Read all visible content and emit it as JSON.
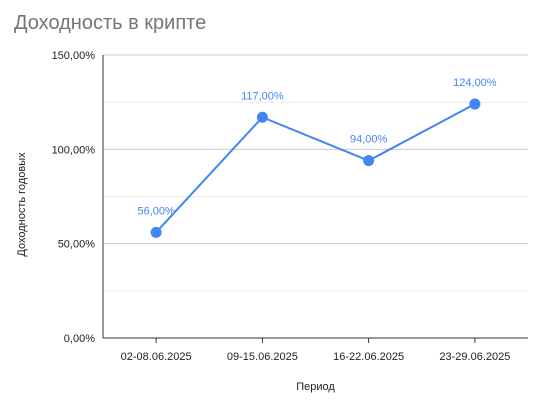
{
  "chart_data": {
    "type": "line",
    "title": "Доходность в крипте",
    "xlabel": "Период",
    "ylabel": "Доходность годовых",
    "categories": [
      "02-08.06.2025",
      "09-15.06.2025",
      "16-22.06.2025",
      "23-29.06.2025"
    ],
    "series": [
      {
        "values": [
          56,
          117,
          94,
          124
        ],
        "labels": [
          "56,00%",
          "117,00%",
          "94,00%",
          "124,00%"
        ],
        "color": "#4285f4"
      }
    ],
    "ylim": [
      0,
      150
    ],
    "yticks": [
      {
        "value": 0,
        "label": "0,00%"
      },
      {
        "value": 50,
        "label": "50,00%"
      },
      {
        "value": 100,
        "label": "100,00%"
      },
      {
        "value": 150,
        "label": "150,00%"
      }
    ],
    "minor_grid": [
      25,
      75,
      125
    ],
    "grid": true,
    "legend": "none"
  }
}
